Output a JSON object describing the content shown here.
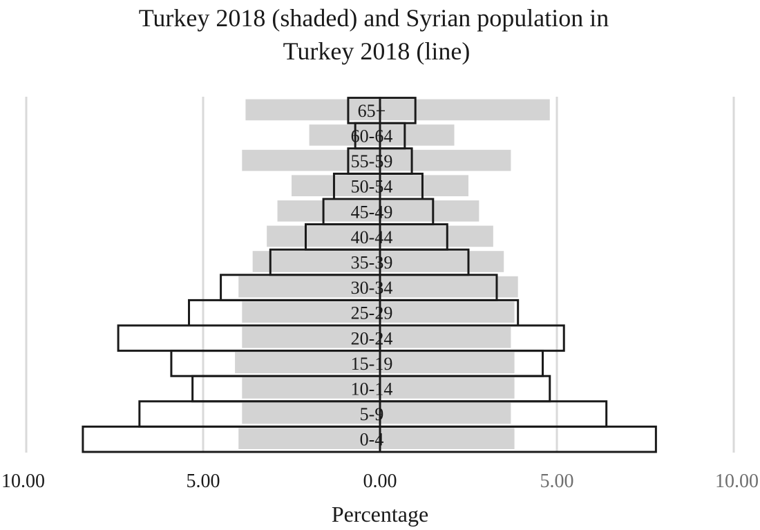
{
  "chart_data": {
    "type": "bar",
    "orientation": "horizontal-pyramid",
    "title_lines": [
      "Turkey 2018 (shaded) and Syrian population in",
      "Turkey 2018 (line)"
    ],
    "xlabel": "Percentage",
    "xlim": [
      -10,
      10
    ],
    "xticks": [
      {
        "value": -10,
        "label": "10.00"
      },
      {
        "value": -5,
        "label": "5.00"
      },
      {
        "value": 0,
        "label": "0.00"
      },
      {
        "value": 5,
        "label": "5.00"
      },
      {
        "value": 10,
        "label": "10.00"
      }
    ],
    "grid": true,
    "categories": [
      "0-4",
      "5-9",
      "10-14",
      "15-19",
      "20-24",
      "25-29",
      "30-34",
      "35-39",
      "40-44",
      "45-49",
      "50-54",
      "55-59",
      "60-64",
      "65+"
    ],
    "series": [
      {
        "style": "shaded",
        "color": "#d3d3d3",
        "left_values": [
          4.0,
          3.9,
          3.9,
          4.1,
          3.9,
          3.9,
          4.0,
          3.6,
          3.2,
          2.9,
          2.5,
          3.9,
          2.0,
          3.8
        ],
        "right_values": [
          3.8,
          3.7,
          3.8,
          3.8,
          3.7,
          3.8,
          3.9,
          3.5,
          3.2,
          2.8,
          2.5,
          3.7,
          2.1,
          4.8
        ]
      },
      {
        "style": "line",
        "color": "#1a1a1a",
        "left_values": [
          8.4,
          6.8,
          5.3,
          5.9,
          7.4,
          5.4,
          4.5,
          3.1,
          2.1,
          1.6,
          1.3,
          0.9,
          0.7,
          0.9
        ],
        "right_values": [
          7.8,
          6.4,
          4.8,
          4.6,
          5.2,
          3.9,
          3.3,
          2.5,
          1.9,
          1.5,
          1.2,
          0.9,
          0.7,
          1.0
        ]
      }
    ]
  }
}
